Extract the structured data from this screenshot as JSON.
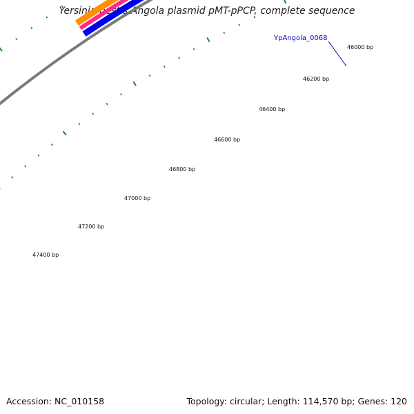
{
  "map": {
    "title": "Yersinia pestis Angola plasmid pMT-pPCP, complete sequence",
    "accession_text": "Accession: NC_010158",
    "summary_text": "Topology: circular; Length: 114,570 bp; Genes: 120"
  },
  "ruler": {
    "tick_labels": [
      "46000 bp",
      "46200 bp",
      "46400 bp",
      "46600 bp",
      "46800 bp",
      "47000 bp",
      "47200 bp",
      "47400 bp"
    ]
  },
  "genes": [
    {
      "name": "YpAngola_0068"
    }
  ],
  "colors": {
    "backbone": "#7a7a7a",
    "tick": "#1a8a1a",
    "orange": "#ff9100",
    "pink": "#ff2a8a",
    "blue": "#0000ee",
    "red": "#ee0000",
    "label_blue": "#0000cc"
  }
}
